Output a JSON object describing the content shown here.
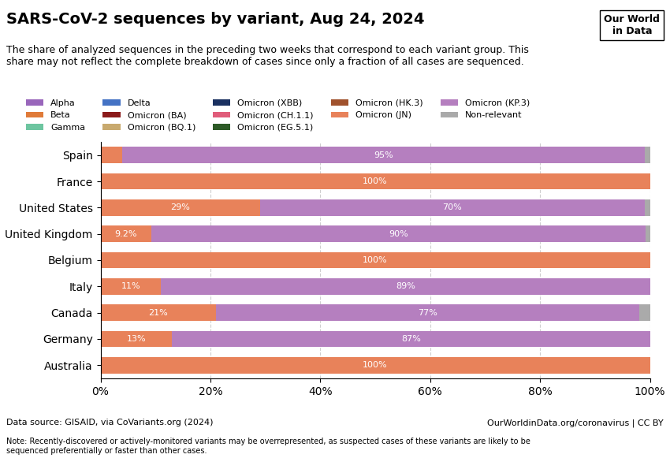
{
  "chart_data": {
    "type": "bar",
    "orientation": "horizontal",
    "stacked": true,
    "title": "SARS-CoV-2 sequences by variant, Aug 24, 2024",
    "subtitle": "The share of analyzed sequences in the preceding two weeks that correspond to each variant group. This\nshare may not reflect the complete breakdown of cases since only a fraction of all cases are sequenced.",
    "annotations": [
      "Our World\nin Data",
      "Data source: GISAID, via CoVariants.org (2024)",
      "OurWorldinData.org/coronavirus | CC BY",
      "Note: Recently-discovered or actively-monitored variants may be overrepresented, as suspected cases of these variants are likely to be\nsequenced preferentially or faster than other cases."
    ],
    "categories": [
      "Spain",
      "France",
      "United States",
      "United Kingdom",
      "Belgium",
      "Italy",
      "Canada",
      "Germany",
      "Australia"
    ],
    "series": [
      {
        "name": "Alpha",
        "color": "#9966bb",
        "values": [
          0,
          0,
          0,
          0,
          0,
          0,
          0,
          0,
          0
        ],
        "value_labels": [
          null,
          null,
          null,
          null,
          null,
          null,
          null,
          null,
          null
        ]
      },
      {
        "name": "Beta",
        "color": "#e07b39",
        "values": [
          0,
          0,
          0,
          0,
          0,
          0,
          0,
          0,
          0
        ],
        "value_labels": [
          null,
          null,
          null,
          null,
          null,
          null,
          null,
          null,
          null
        ]
      },
      {
        "name": "Gamma",
        "color": "#6dc5a0",
        "values": [
          0,
          0,
          0,
          0,
          0,
          0,
          0,
          0,
          0
        ],
        "value_labels": [
          null,
          null,
          null,
          null,
          null,
          null,
          null,
          null,
          null
        ]
      },
      {
        "name": "Delta",
        "color": "#4472c4",
        "values": [
          0,
          0,
          0,
          0,
          0,
          0,
          0,
          0,
          0
        ],
        "value_labels": [
          null,
          null,
          null,
          null,
          null,
          null,
          null,
          null,
          null
        ]
      },
      {
        "name": "Omicron (BA)",
        "color": "#8b1a1a",
        "values": [
          0,
          0,
          0,
          0,
          0,
          0,
          0,
          0,
          0
        ],
        "value_labels": [
          null,
          null,
          null,
          null,
          null,
          null,
          null,
          null,
          null
        ]
      },
      {
        "name": "Omicron (BQ.1)",
        "color": "#c8a96e",
        "values": [
          0,
          0,
          0,
          0,
          0,
          0,
          0,
          0,
          0
        ],
        "value_labels": [
          null,
          null,
          null,
          null,
          null,
          null,
          null,
          null,
          null
        ]
      },
      {
        "name": "Omicron (XBB)",
        "color": "#1a3060",
        "values": [
          0,
          0,
          0,
          0,
          0,
          0,
          0,
          0,
          0
        ],
        "value_labels": [
          null,
          null,
          null,
          null,
          null,
          null,
          null,
          null,
          null
        ]
      },
      {
        "name": "Omicron (CH.1.1)",
        "color": "#e05c7a",
        "values": [
          0,
          0,
          0,
          0,
          0,
          0,
          0,
          0,
          0
        ],
        "value_labels": [
          null,
          null,
          null,
          null,
          null,
          null,
          null,
          null,
          null
        ]
      },
      {
        "name": "Omicron (EG.5.1)",
        "color": "#2d5a27",
        "values": [
          0,
          0,
          0,
          0,
          0,
          0,
          0,
          0,
          0
        ],
        "value_labels": [
          null,
          null,
          null,
          null,
          null,
          null,
          null,
          null,
          null
        ]
      },
      {
        "name": "Omicron (HK.3)",
        "color": "#a0522d",
        "values": [
          0,
          0,
          0,
          0,
          0,
          0,
          0,
          0,
          0
        ],
        "value_labels": [
          null,
          null,
          null,
          null,
          null,
          null,
          null,
          null,
          null
        ]
      },
      {
        "name": "Omicron (JN)",
        "color": "#e8825a",
        "values": [
          4.0,
          100.0,
          29.0,
          9.2,
          100.0,
          11.0,
          21.0,
          13.0,
          100.0
        ],
        "value_labels": [
          null,
          "100%",
          "29%",
          "9.2%",
          "100%",
          "11%",
          "21%",
          "13%",
          "100%"
        ]
      },
      {
        "name": "Omicron (KP.3)",
        "color": "#b57fbf",
        "values": [
          95.0,
          0,
          70.0,
          90.0,
          0,
          89.0,
          77.0,
          87.0,
          0
        ],
        "value_labels": [
          "95%",
          null,
          "70%",
          "90%",
          null,
          "89%",
          "77%",
          "87%",
          null
        ]
      },
      {
        "name": "Non-relevant",
        "color": "#aaaaaa",
        "values": [
          1.0,
          0,
          1.0,
          0.8,
          0,
          0,
          2.0,
          0,
          0
        ],
        "value_labels": [
          null,
          null,
          null,
          null,
          null,
          null,
          null,
          null,
          null
        ]
      }
    ],
    "xlim": [
      0,
      100
    ],
    "xticks": [
      {
        "value": 0,
        "label": "0%"
      },
      {
        "value": 20,
        "label": "20%"
      },
      {
        "value": 40,
        "label": "40%"
      },
      {
        "value": 60,
        "label": "60%"
      },
      {
        "value": 80,
        "label": "80%"
      },
      {
        "value": 100,
        "label": "100%"
      }
    ],
    "grid": true,
    "legend": "lower left",
    "data_labels": true
  }
}
